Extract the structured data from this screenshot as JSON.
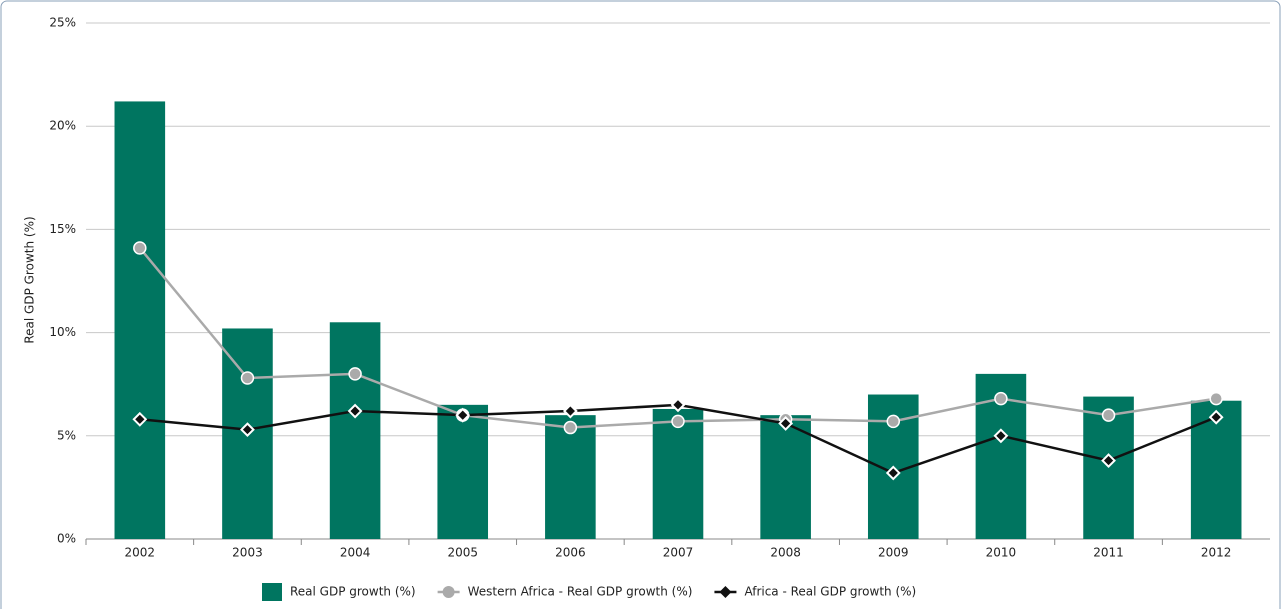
{
  "chart_data": {
    "type": "bar",
    "y_label": "Real GDP Growth (%)",
    "categories": [
      "2002",
      "2003",
      "2004",
      "2005",
      "2006",
      "2007",
      "2008",
      "2009",
      "2010",
      "2011",
      "2012"
    ],
    "series": [
      {
        "name": "Real GDP growth (%)",
        "type": "bar",
        "color": "#007560",
        "values": [
          21.2,
          10.2,
          10.5,
          6.5,
          6.0,
          6.3,
          6.0,
          7.0,
          8.0,
          6.9,
          6.7
        ]
      },
      {
        "name": "Western Africa - Real GDP growth (%)",
        "type": "line",
        "marker": "circle",
        "color": "#aaaaaa",
        "values": [
          14.1,
          7.8,
          8.0,
          6.0,
          5.4,
          5.7,
          5.8,
          5.7,
          6.8,
          6.0,
          6.8
        ]
      },
      {
        "name": "Africa - Real GDP growth (%)",
        "type": "line",
        "marker": "diamond",
        "color": "#111111",
        "values": [
          5.8,
          5.3,
          6.2,
          6.0,
          6.2,
          6.5,
          5.6,
          3.2,
          5.0,
          3.8,
          5.9
        ]
      }
    ],
    "ylim": [
      0,
      25
    ],
    "yticks": [
      {
        "value": 0,
        "label": "0%"
      },
      {
        "value": 5,
        "label": "5%"
      },
      {
        "value": 10,
        "label": "10%"
      },
      {
        "value": 15,
        "label": "15%"
      },
      {
        "value": 20,
        "label": "20%"
      },
      {
        "value": 25,
        "label": "25%"
      }
    ],
    "grid": true
  }
}
